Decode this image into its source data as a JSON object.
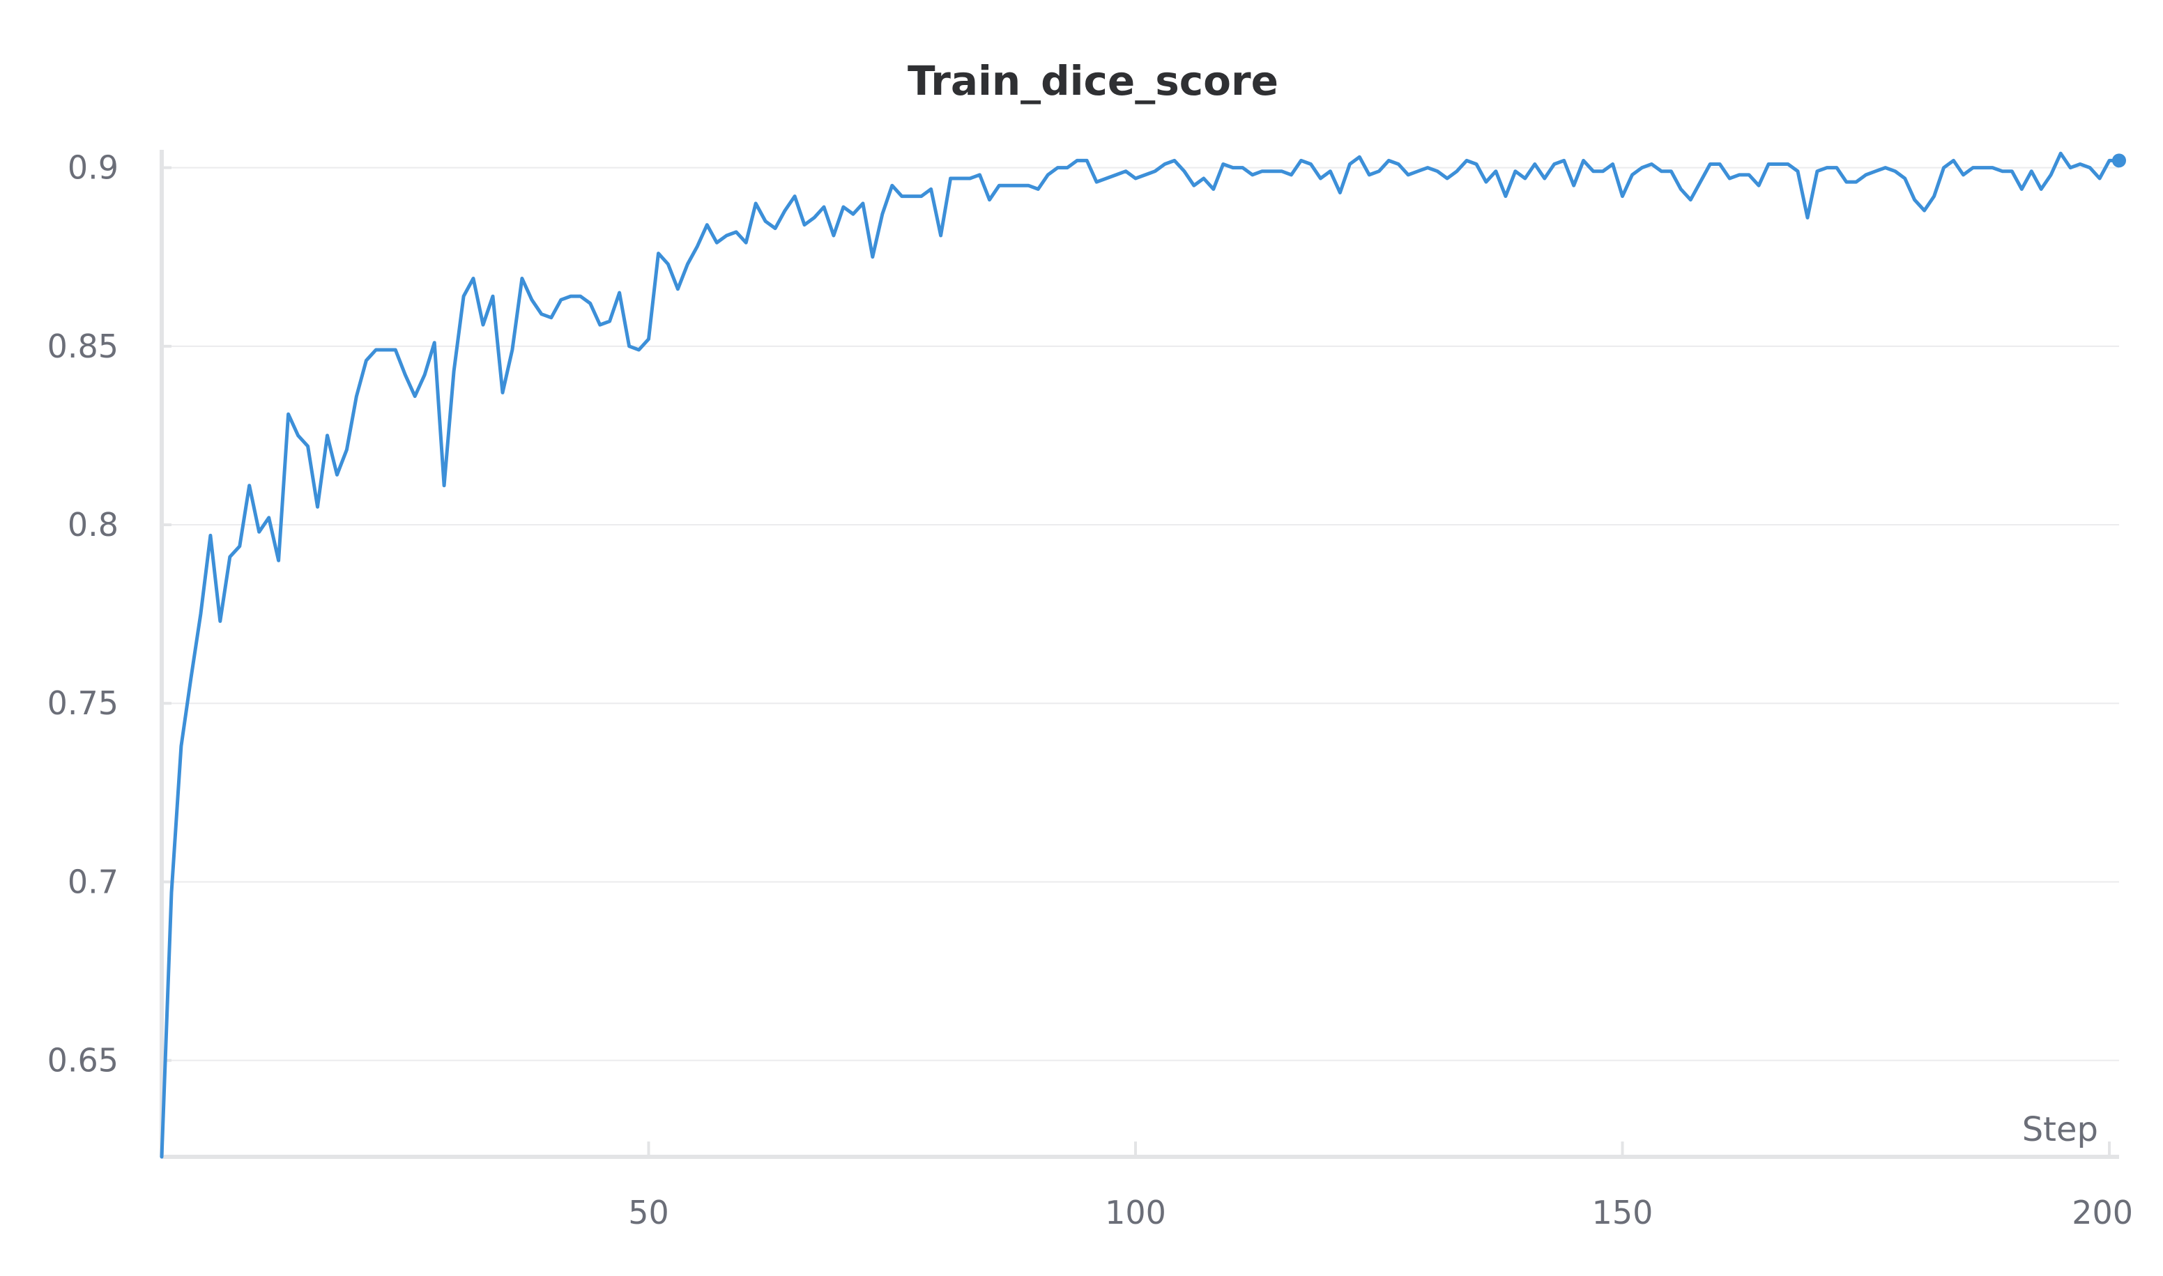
{
  "chart_data": {
    "type": "line",
    "title": "Train_dice_score",
    "xlabel": "Step",
    "ylabel": "",
    "xlim": [
      0,
      201
    ],
    "ylim": [
      0.623,
      0.905
    ],
    "x_ticks": [
      50,
      100,
      150,
      200
    ],
    "y_ticks": [
      0.65,
      0.7,
      0.75,
      0.8,
      0.85,
      0.9
    ],
    "grid": true,
    "legend": "none",
    "series": [
      {
        "color": "#3c8fd8",
        "x": [
          0,
          1,
          2,
          3,
          4,
          5,
          6,
          7,
          8,
          9,
          10,
          11,
          12,
          13,
          14,
          15,
          16,
          17,
          18,
          19,
          20,
          21,
          22,
          23,
          24,
          25,
          26,
          27,
          28,
          29,
          30,
          31,
          32,
          33,
          34,
          35,
          36,
          37,
          38,
          39,
          40,
          41,
          42,
          43,
          44,
          45,
          46,
          47,
          48,
          49,
          50,
          51,
          52,
          53,
          54,
          55,
          56,
          57,
          58,
          59,
          60,
          61,
          62,
          63,
          64,
          65,
          66,
          67,
          68,
          69,
          70,
          71,
          72,
          73,
          74,
          75,
          76,
          77,
          78,
          79,
          80,
          81,
          82,
          83,
          84,
          85,
          86,
          87,
          88,
          89,
          90,
          91,
          92,
          93,
          94,
          95,
          96,
          97,
          98,
          99,
          100,
          101,
          102,
          103,
          104,
          105,
          106,
          107,
          108,
          109,
          110,
          111,
          112,
          113,
          114,
          115,
          116,
          117,
          118,
          119,
          120,
          121,
          122,
          123,
          124,
          125,
          126,
          127,
          128,
          129,
          130,
          131,
          132,
          133,
          134,
          135,
          136,
          137,
          138,
          139,
          140,
          141,
          142,
          143,
          144,
          145,
          146,
          147,
          148,
          149,
          150,
          151,
          152,
          153,
          154,
          155,
          156,
          157,
          158,
          159,
          160,
          161,
          162,
          163,
          164,
          165,
          166,
          167,
          168,
          169,
          170,
          171,
          172,
          173,
          174,
          175,
          176,
          177,
          178,
          179,
          180,
          181,
          182,
          183,
          184,
          185,
          186,
          187,
          188,
          189,
          190,
          191,
          192,
          193,
          194,
          195,
          196,
          197,
          198,
          199,
          200,
          201
        ],
        "values": [
          0.623,
          0.697,
          0.738,
          0.757,
          0.775,
          0.797,
          0.773,
          0.791,
          0.794,
          0.811,
          0.798,
          0.802,
          0.79,
          0.831,
          0.825,
          0.822,
          0.805,
          0.825,
          0.814,
          0.821,
          0.836,
          0.846,
          0.849,
          0.849,
          0.849,
          0.842,
          0.836,
          0.842,
          0.851,
          0.811,
          0.843,
          0.864,
          0.869,
          0.856,
          0.864,
          0.837,
          0.849,
          0.869,
          0.863,
          0.859,
          0.858,
          0.863,
          0.864,
          0.864,
          0.862,
          0.856,
          0.857,
          0.865,
          0.85,
          0.849,
          0.852,
          0.876,
          0.873,
          0.866,
          0.873,
          0.878,
          0.884,
          0.879,
          0.881,
          0.882,
          0.879,
          0.89,
          0.885,
          0.883,
          0.888,
          0.892,
          0.884,
          0.886,
          0.889,
          0.881,
          0.889,
          0.887,
          0.89,
          0.875,
          0.887,
          0.895,
          0.892,
          0.892,
          0.892,
          0.894,
          0.881,
          0.897,
          0.897,
          0.897,
          0.898,
          0.891,
          0.895,
          0.895,
          0.895,
          0.895,
          0.894,
          0.898,
          0.9,
          0.9,
          0.902,
          0.902,
          0.896,
          0.897,
          0.898,
          0.899,
          0.897,
          0.898,
          0.899,
          0.901,
          0.902,
          0.899,
          0.895,
          0.897,
          0.894,
          0.901,
          0.9,
          0.9,
          0.898,
          0.899,
          0.899,
          0.899,
          0.898,
          0.902,
          0.901,
          0.897,
          0.899,
          0.893,
          0.901,
          0.903,
          0.898,
          0.899,
          0.902,
          0.901,
          0.898,
          0.899,
          0.9,
          0.899,
          0.897,
          0.899,
          0.902,
          0.901,
          0.896,
          0.899,
          0.892,
          0.899,
          0.897,
          0.901,
          0.897,
          0.901,
          0.902,
          0.895,
          0.902,
          0.899,
          0.899,
          0.901,
          0.892,
          0.898,
          0.9,
          0.901,
          0.899,
          0.899,
          0.894,
          0.891,
          0.896,
          0.901,
          0.901,
          0.897,
          0.898,
          0.898,
          0.895,
          0.901,
          0.901,
          0.901,
          0.899,
          0.886,
          0.899,
          0.9,
          0.9,
          0.896,
          0.896,
          0.898,
          0.899,
          0.9,
          0.899,
          0.897,
          0.891,
          0.888,
          0.892,
          0.9,
          0.902,
          0.898,
          0.9,
          0.9,
          0.9,
          0.899,
          0.899,
          0.894,
          0.899,
          0.894,
          0.898,
          0.904,
          0.9,
          0.901,
          0.9,
          0.897,
          0.902,
          0.902
        ]
      }
    ]
  }
}
